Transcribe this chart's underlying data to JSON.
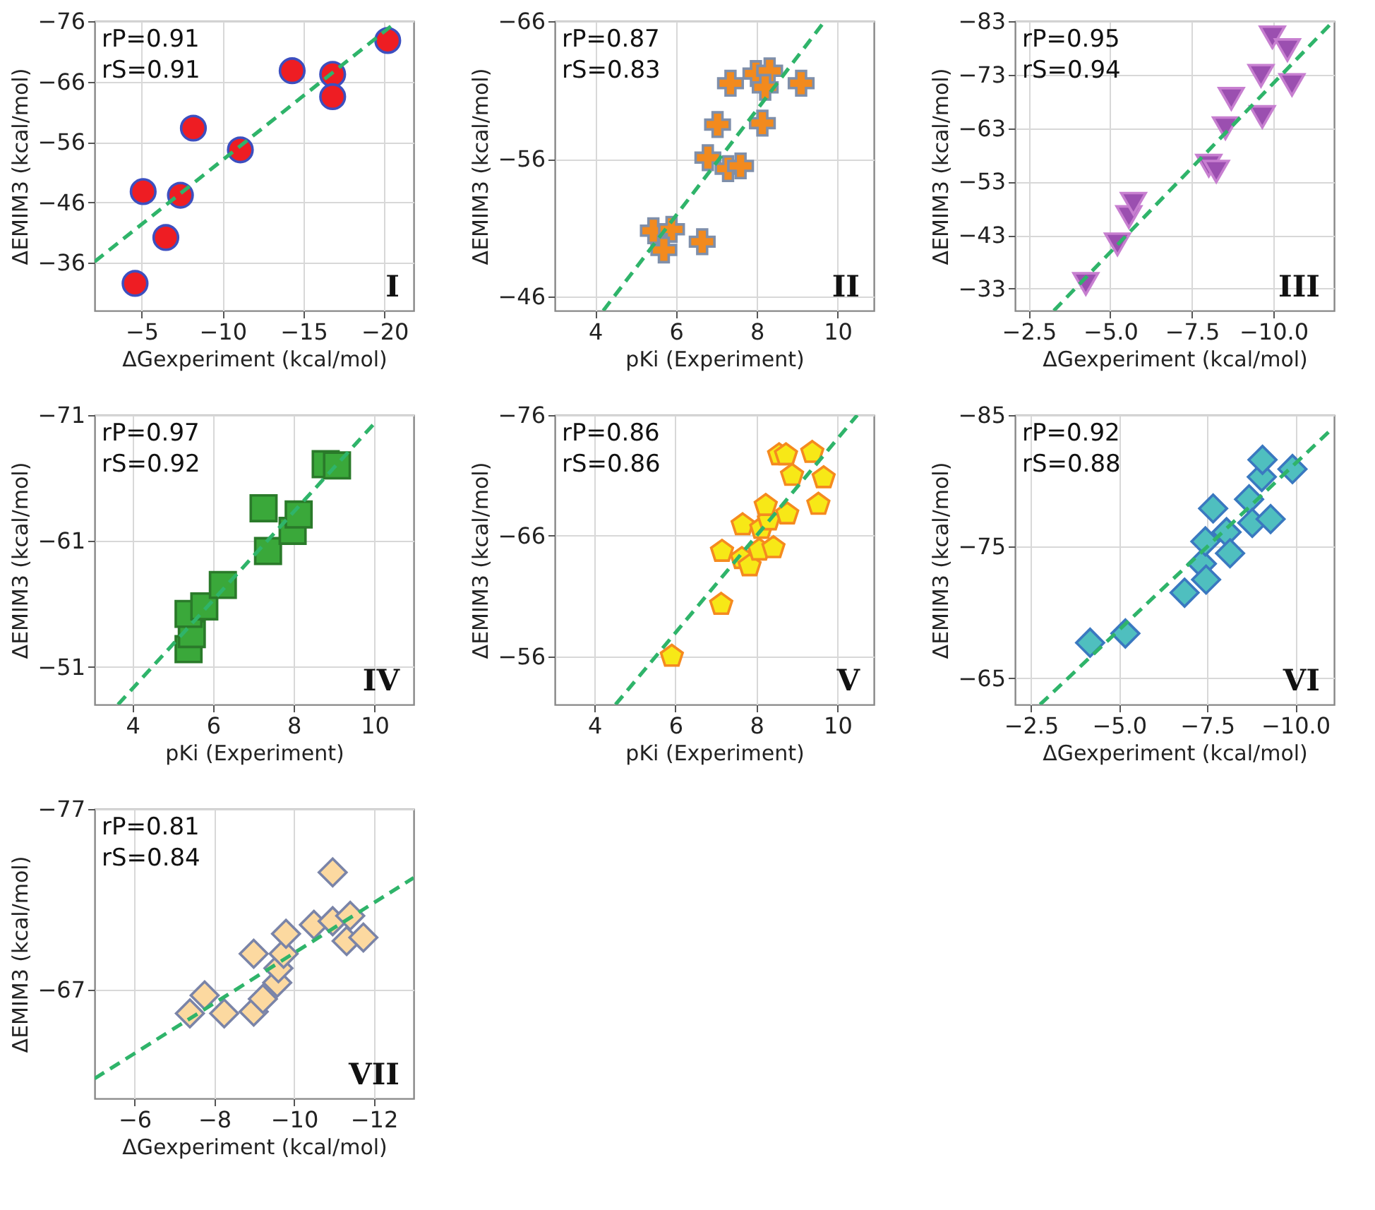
{
  "chart_data": [
    {
      "type": "scatter",
      "xlabel": "ΔGexperiment (kcal/mol)",
      "ylabel": "ΔEMIM3 (kcal/mol)",
      "xlim": [
        -2.1,
        -21.8
      ],
      "ylim": [
        -28.1,
        -76
      ],
      "xticks": [
        -5,
        -10,
        -15,
        -20
      ],
      "yticks": [
        -76,
        -66,
        -56,
        -46,
        -36
      ],
      "grid": true,
      "annotations": [
        "rP=0.91",
        "rS=0.91",
        "I"
      ],
      "series": [
        {
          "color": "#ee1d23",
          "marker": "circle",
          "x": [
            -4.6,
            -5.1,
            -6.5,
            -7.4,
            -8.2,
            -11.1,
            -14.3,
            -16.8,
            -16.8,
            -20.2
          ],
          "values": [
            -32.6,
            -47.8,
            -40.2,
            -47.2,
            -58.3,
            -54.7,
            -67.8,
            -67.2,
            -63.5,
            -72.8
          ]
        },
        {
          "type": "line",
          "color": "#2fb46a",
          "line_style": "dashed",
          "x": [
            -2.1,
            -20.7
          ],
          "values": [
            -36.2,
            -75.8
          ]
        }
      ]
    },
    {
      "type": "scatter",
      "xlabel": "pKi (Experiment)",
      "ylabel": "ΔEMIM3 (kcal/mol)",
      "xlim": [
        3.0,
        10.9
      ],
      "ylim": [
        -45,
        -66
      ],
      "xticks": [
        4,
        6,
        8,
        10
      ],
      "yticks": [
        -66,
        -56,
        -46
      ],
      "grid": true,
      "annotations": [
        "rP=0.87",
        "rS=0.83",
        "II"
      ],
      "series": [
        {
          "color": "#f28a1e",
          "marker": "cross",
          "x": [
            5.44,
            5.89,
            5.7,
            6.65,
            6.79,
            7.03,
            7.29,
            7.6,
            7.35,
            7.98,
            8.32,
            8.21,
            8.14,
            9.1
          ],
          "values": [
            -50.8,
            -50.9,
            -49.4,
            -50.0,
            -56.1,
            -58.5,
            -55.3,
            -55.5,
            -61.5,
            -62.2,
            -62.4,
            -61.2,
            -58.6,
            -61.5
          ]
        },
        {
          "type": "line",
          "color": "#2fb46a",
          "line_style": "dashed",
          "x": [
            4.2,
            9.63
          ],
          "values": [
            -45,
            -65.8
          ]
        }
      ]
    },
    {
      "type": "scatter",
      "xlabel": "ΔGexperiment (kcal/mol)",
      "ylabel": "ΔEMIM3 (kcal/mol)",
      "xlim": [
        -2.08,
        -11.86
      ],
      "ylim": [
        -28.9,
        -83
      ],
      "xticks": [
        {
          "value": -2.5,
          "label": "−2.5"
        },
        {
          "value": -5,
          "label": "−5.0"
        },
        {
          "value": -7.5,
          "label": "−7.5"
        },
        {
          "value": -10,
          "label": "−10.0"
        }
      ],
      "yticks": [
        -83,
        -73,
        -63,
        -53,
        -43,
        -33
      ],
      "grid": true,
      "annotations": [
        "rP=0.95",
        "rS=0.94",
        "III"
      ],
      "series": [
        {
          "color": "#9b4fb0",
          "marker": "triangle",
          "x": [
            -4.25,
            -5.22,
            -5.57,
            -5.71,
            -8.02,
            -8.25,
            -8.53,
            -8.71,
            -9.66,
            -9.62,
            -9.97,
            -10.43,
            -10.57
          ],
          "values": [
            -33.9,
            -41.3,
            -46.4,
            -48.9,
            -56.0,
            -54.9,
            -63.0,
            -68.5,
            -65.1,
            -72.8,
            -80.0,
            -77.6,
            -71.1
          ]
        },
        {
          "type": "line",
          "color": "#2fb46a",
          "line_style": "dashed",
          "x": [
            -3.27,
            -11.79
          ],
          "values": [
            -28.9,
            -82.7
          ]
        }
      ]
    },
    {
      "type": "scatter",
      "xlabel": "pKi (Experiment)",
      "ylabel": "ΔEMIM3 (kcal/mol)",
      "xlim": [
        3.06,
        10.97
      ],
      "ylim": [
        -48.0,
        -71
      ],
      "xticks": [
        4,
        6,
        8,
        10
      ],
      "yticks": [
        -71,
        -61,
        -51
      ],
      "grid": true,
      "annotations": [
        "rP=0.97",
        "rS=0.92",
        "IV"
      ],
      "series": [
        {
          "color": "#3aa83a",
          "marker": "square",
          "x": [
            5.39,
            5.47,
            5.39,
            5.78,
            6.24,
            7.36,
            7.25,
            7.97,
            8.12,
            8.79,
            9.07
          ],
          "values": [
            -52.4,
            -53.6,
            -55.2,
            -55.8,
            -57.5,
            -60.2,
            -63.6,
            -61.8,
            -63.1,
            -67.1,
            -67.0
          ]
        },
        {
          "type": "line",
          "color": "#2fb46a",
          "line_style": "dashed",
          "x": [
            3.64,
            10.07
          ],
          "values": [
            -48,
            -70.6
          ]
        }
      ]
    },
    {
      "type": "scatter",
      "xlabel": "pKi (Experiment)",
      "ylabel": "ΔEMIM3 (kcal/mol)",
      "xlim": [
        3.02,
        10.9
      ],
      "ylim": [
        -52,
        -76
      ],
      "xticks": [
        4,
        6,
        8,
        10
      ],
      "yticks": [
        -76,
        -66,
        -56
      ],
      "grid": true,
      "annotations": [
        "rP=0.86",
        "rS=0.86",
        "V"
      ],
      "series": [
        {
          "color": "#f7e817",
          "x": [
            5.91,
            7.13,
            7.15,
            7.64,
            7.83,
            7.66,
            8.07,
            8.12,
            8.31,
            8.23,
            8.42,
            8.76,
            8.56,
            8.73,
            8.88,
            9.38,
            9.66,
            9.53
          ],
          "values": [
            -56.0,
            -60.3,
            -64.7,
            -64.1,
            -63.5,
            -66.9,
            -64.8,
            -66.6,
            -67.3,
            -68.5,
            -65.0,
            -67.8,
            -72.7,
            -72.7,
            -71.0,
            -72.9,
            -70.8,
            -68.6
          ]
        },
        {
          "type": "line",
          "color": "#2fb46a",
          "line_style": "dashed",
          "x": [
            4.52,
            10.49
          ],
          "values": [
            -52,
            -76
          ]
        }
      ]
    },
    {
      "type": "scatter",
      "xlabel": "ΔGexperiment (kcal/mol)",
      "ylabel": "ΔEMIM3 (kcal/mol)",
      "xlim": [
        -2.05,
        -11.1
      ],
      "ylim": [
        -63,
        -85
      ],
      "xticks": [
        {
          "value": -2.5,
          "label": "−2.5"
        },
        {
          "value": -5,
          "label": "−5.0"
        },
        {
          "value": -7.5,
          "label": "−7.5"
        },
        {
          "value": -10,
          "label": "−10.0"
        }
      ],
      "yticks": [
        -85,
        -75,
        -65
      ],
      "grid": true,
      "annotations": [
        "rP=0.92",
        "rS=0.88",
        "VI"
      ],
      "series": [
        {
          "color": "#4fbfbf",
          "marker": "diamond",
          "x": [
            -4.18,
            -5.18,
            -6.86,
            -7.35,
            -7.47,
            -7.45,
            -7.67,
            -8.05,
            -8.15,
            -8.69,
            -8.78,
            -9.05,
            -9.07,
            -9.3,
            -9.92
          ],
          "values": [
            -67.7,
            -68.4,
            -71.5,
            -73.7,
            -72.5,
            -75.4,
            -77.9,
            -76.1,
            -74.5,
            -78.6,
            -76.8,
            -80.3,
            -81.6,
            -77.1,
            -80.9
          ]
        },
        {
          "type": "line",
          "color": "#2fb46a",
          "line_style": "dashed",
          "x": [
            -2.76,
            -11.06
          ],
          "values": [
            -63,
            -84.0
          ]
        }
      ]
    },
    {
      "type": "scatter",
      "xlabel": "ΔGexperiment (kcal/mol)",
      "ylabel": "ΔEMIM3 (kcal/mol)",
      "xlim": [
        -5.0,
        -13.0
      ],
      "ylim": [
        -61.0,
        -77
      ],
      "xticks": [
        -6,
        -8,
        -10,
        -12
      ],
      "yticks": [
        -77,
        -67
      ],
      "grid": true,
      "annotations": [
        "rP=0.81",
        "rS=0.84",
        "VII"
      ],
      "series": [
        {
          "color": "#fcd9a0",
          "marker": "diamond",
          "x": [
            -7.39,
            -7.76,
            -8.25,
            -8.99,
            -9.22,
            -8.99,
            -9.58,
            -9.61,
            -9.74,
            -9.8,
            -10.5,
            -10.97,
            -10.97,
            -11.41,
            -11.32,
            -11.74
          ],
          "values": [
            -65.7,
            -66.7,
            -65.7,
            -65.8,
            -66.5,
            -69.0,
            -67.4,
            -68.2,
            -69.0,
            -70.1,
            -70.6,
            -70.8,
            -73.5,
            -71.1,
            -69.7,
            -69.9
          ]
        },
        {
          "type": "line",
          "color": "#2fb46a",
          "line_style": "dashed",
          "x": [
            -5.0,
            -13.0
          ],
          "values": [
            -62.1,
            -73.2
          ]
        }
      ]
    }
  ]
}
